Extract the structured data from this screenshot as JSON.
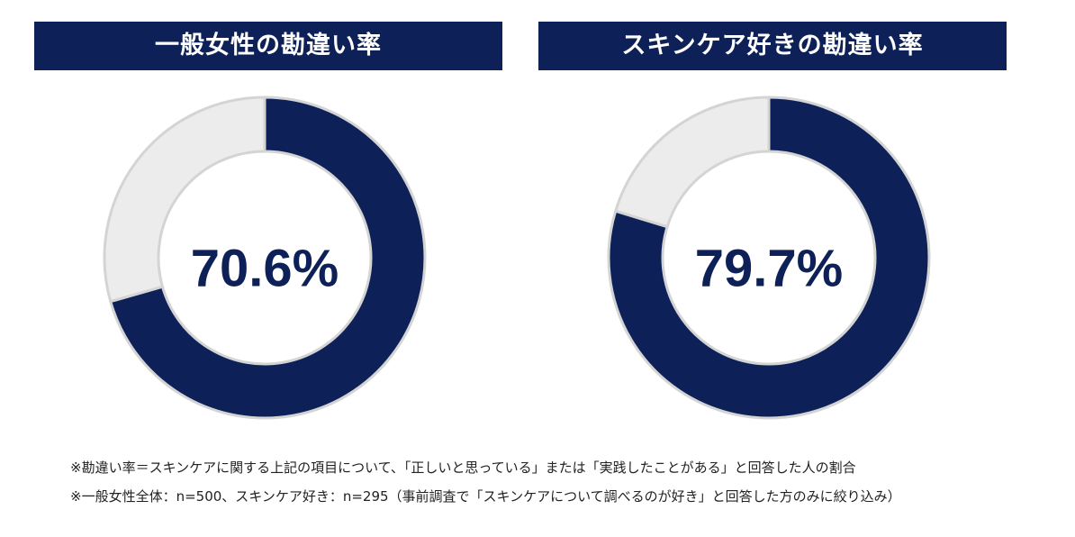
{
  "chart_data": [
    {
      "type": "pie",
      "title": "一般女性の勘違い率",
      "center_label": "70.6%",
      "slices": [
        {
          "value": 70.6,
          "color": "#0d2158"
        },
        {
          "value": 29.4,
          "color": "#ececec"
        }
      ]
    },
    {
      "type": "pie",
      "title": "スキンケア好きの勘違い率",
      "center_label": "79.7%",
      "slices": [
        {
          "value": 79.7,
          "color": "#0d2158"
        },
        {
          "value": 20.3,
          "color": "#ececec"
        }
      ]
    }
  ],
  "colors": {
    "accent": "#0d2158",
    "remainder": "#ececec",
    "border": "#d4d4d4"
  },
  "footnotes": [
    "※勘違い率＝スキンケアに関する上記の項目について、「正しいと思っている」または「実践したことがある」と回答した人の割合",
    "※一般女性全体：n=500、スキンケア好き：n=295（事前調査で「スキンケアについて調べるのが好き」と回答した方のみに絞り込み）"
  ]
}
